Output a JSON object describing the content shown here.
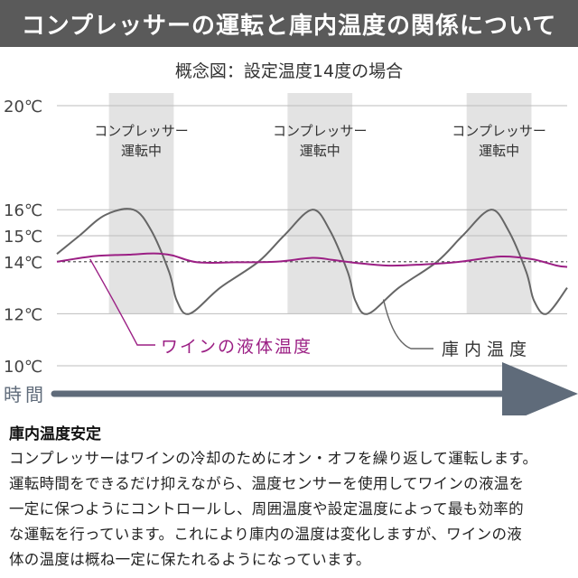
{
  "header": {
    "title": "コンプレッサーの運転と庫内温度の関係について"
  },
  "chart_data": {
    "type": "line",
    "subtitle": "概念図：設定温度14度の場合",
    "y_ticks": [
      {
        "value": 20,
        "label": "20℃"
      },
      {
        "value": 16,
        "label": "16℃"
      },
      {
        "value": 15,
        "label": "15℃"
      },
      {
        "value": 14,
        "label": "14℃"
      },
      {
        "value": 12,
        "label": "12℃"
      },
      {
        "value": 10,
        "label": "10℃"
      }
    ],
    "ylim": [
      10,
      20
    ],
    "xlim": [
      0,
      10
    ],
    "xlabel": "時間",
    "set_temperature": 14,
    "compressor_bands": [
      {
        "start": 1.02,
        "end": 2.29,
        "label_line1": "コンプレッサー",
        "label_line2": "運転中"
      },
      {
        "start": 4.52,
        "end": 5.79,
        "label_line1": "コンプレッサー",
        "label_line2": "運転中"
      },
      {
        "start": 8.03,
        "end": 9.3,
        "label_line1": "コンプレッサー",
        "label_line2": "運転中"
      }
    ],
    "series": [
      {
        "name": "庫内温度",
        "color": "#666666",
        "x": [
          0,
          0.44,
          0.95,
          1.5,
          1.85,
          2.2,
          2.35,
          2.6,
          3.2,
          3.95,
          4.45,
          5.0,
          5.35,
          5.7,
          5.85,
          6.1,
          6.7,
          7.45,
          7.95,
          8.5,
          8.85,
          9.2,
          9.35,
          9.6,
          10.0
        ],
        "values": [
          14.3,
          15.0,
          15.8,
          16.0,
          15.2,
          13.6,
          12.5,
          12.0,
          13.0,
          14.0,
          15.0,
          16.0,
          15.2,
          13.6,
          12.5,
          12.0,
          13.0,
          14.0,
          15.0,
          16.0,
          15.2,
          13.6,
          12.5,
          12.0,
          13.0
        ]
      },
      {
        "name": "ワインの液体温度",
        "color": "#9b1f84",
        "x": [
          0,
          0.75,
          1.4,
          1.9,
          2.25,
          2.75,
          3.5,
          4.3,
          5.0,
          5.4,
          5.8,
          6.5,
          7.2,
          7.9,
          8.7,
          9.3,
          9.8,
          10.0
        ],
        "values": [
          14.0,
          14.22,
          14.27,
          14.32,
          14.25,
          13.98,
          13.98,
          14.0,
          14.15,
          14.07,
          13.97,
          13.85,
          13.9,
          14.0,
          14.2,
          14.1,
          13.85,
          13.8
        ]
      }
    ],
    "annotations": [
      {
        "text": "ワインの液体温度",
        "series": "ワインの液体温度"
      },
      {
        "text": "庫内温度",
        "series": "庫内温度"
      }
    ]
  },
  "section": {
    "title": "庫内温度安定",
    "lines": [
      "コンプレッサーはワインの冷却のためにオン・オフを繰り返して運転します。",
      "運転時間をできるだけ抑えながら、温度センサーを使用してワインの液温を",
      "一定に保つようにコントロールし、周囲温度や設定温度によって最も効率的",
      "な運転を行っています。これにより庫内の温度は変化しますが、ワインの液",
      "体の温度は概ね一定に保たれるようになっています。"
    ]
  }
}
